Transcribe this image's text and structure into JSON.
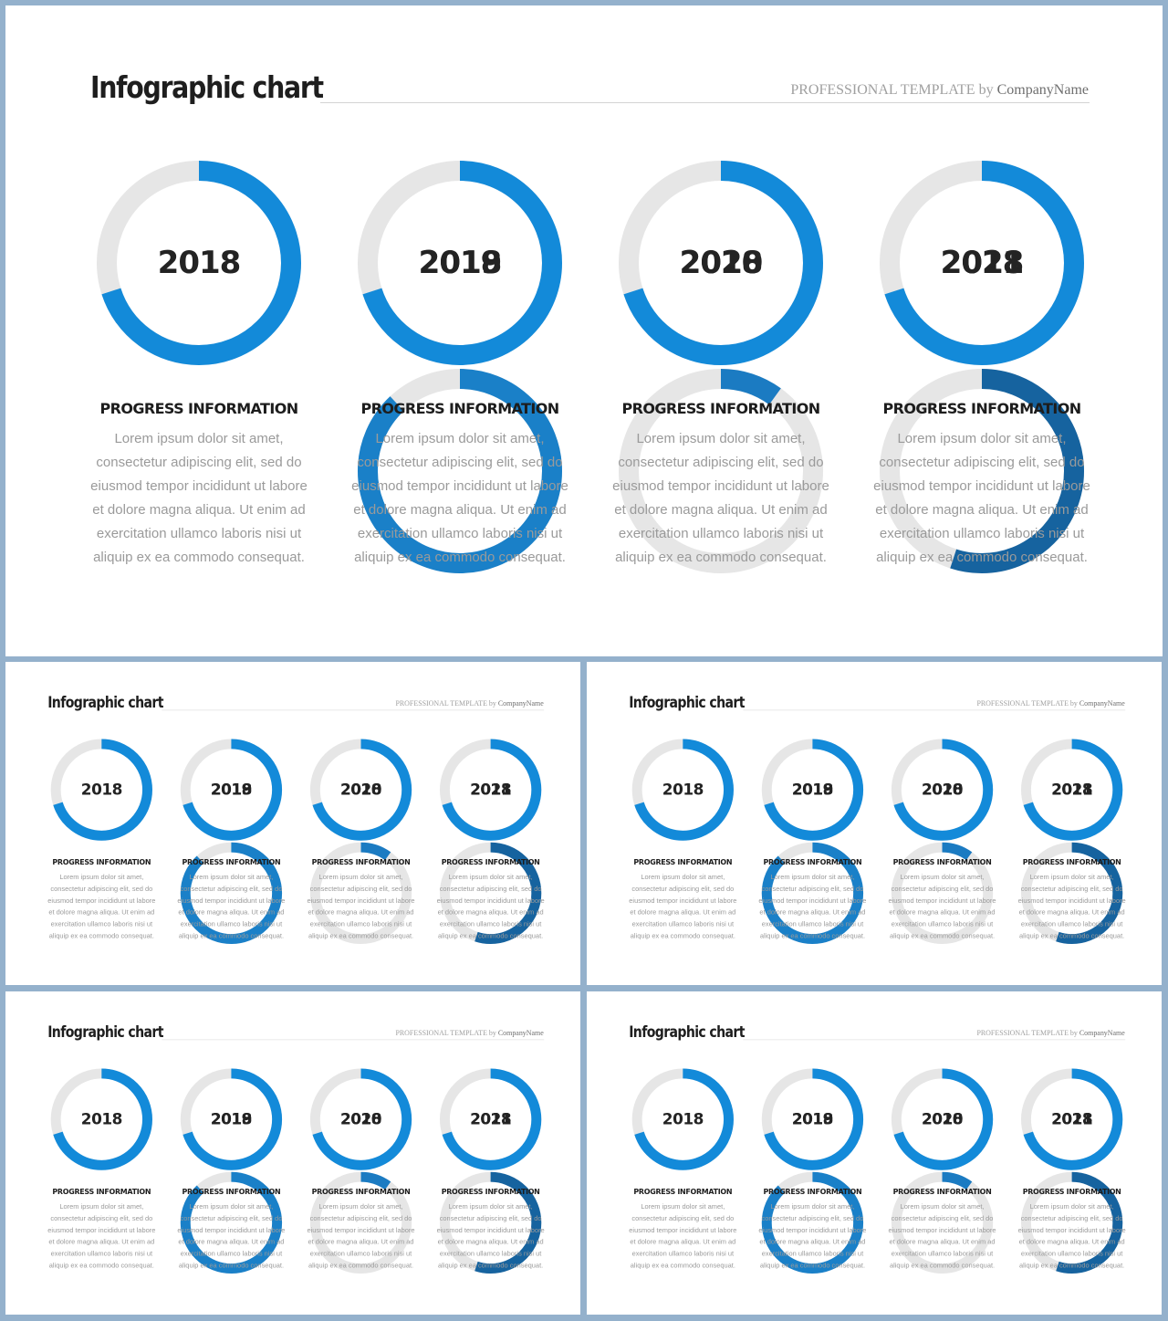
{
  "title": "Infographic chart",
  "subtitle": {
    "prefix": "PROFESSIONAL TEMPLATE by ",
    "company": "CompanyName"
  },
  "heading": "PROGRESS INFORMATION",
  "body": "Lorem ipsum dolor sit amet, consectetur adipiscing elit, sed do eiusmod tempor incididunt ut labore et dolore magna aliqua. Ut enim ad exercitation ullamco laboris nisi ut aliquip ex ea commodo consequat.",
  "track_color": "#e6e6e6",
  "items": [
    {
      "year": "2018",
      "progress": 0.7,
      "color": "#138ad9"
    },
    {
      "year": "2019",
      "progress": 0.88,
      "color": "#1a80c8"
    },
    {
      "year": "2020",
      "progress": 0.1,
      "color": "#1b7bc2"
    },
    {
      "year": "2021",
      "progress": 0.55,
      "color": "#16639f"
    }
  ]
}
